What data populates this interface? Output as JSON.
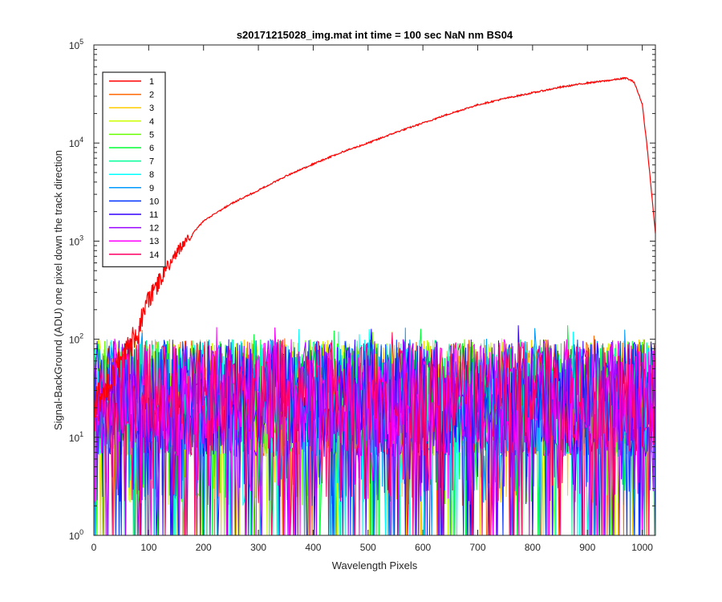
{
  "chart_data": {
    "type": "line",
    "title": "s20171215028_img.mat int time = 100 sec  NaN nm BS04",
    "xlabel": "Wavelength Pixels",
    "ylabel": "Signal-BackGround (ADU) one pixel down the track direction",
    "x_range": [
      0,
      1024
    ],
    "y_range": [
      1,
      100000
    ],
    "y_scale": "log",
    "grid": false,
    "legend_position": "top-left",
    "x_ticks": [
      0,
      100,
      200,
      300,
      400,
      500,
      600,
      700,
      800,
      900,
      1000
    ],
    "x_tick_labels": [
      "0",
      "100",
      "200",
      "300",
      "400",
      "500",
      "600",
      "700",
      "800",
      "900",
      "1000"
    ],
    "y_ticks": [
      {
        "value": 1,
        "base": "10",
        "exp": "0"
      },
      {
        "value": 10,
        "base": "10",
        "exp": "1"
      },
      {
        "value": 100,
        "base": "10",
        "exp": "2"
      },
      {
        "value": 1000,
        "base": "10",
        "exp": "3"
      },
      {
        "value": 10000,
        "base": "10",
        "exp": "4"
      },
      {
        "value": 100000,
        "base": "10",
        "exp": "5"
      }
    ],
    "signal_series": {
      "name": "1",
      "color": "#ff0000",
      "x": [
        0,
        50,
        80,
        100,
        130,
        160,
        200,
        250,
        300,
        350,
        400,
        450,
        500,
        550,
        600,
        650,
        700,
        750,
        800,
        850,
        900,
        940,
        970,
        985,
        1000,
        1010,
        1024
      ],
      "y": [
        20,
        60,
        120,
        250,
        500,
        900,
        1600,
        2400,
        3300,
        4600,
        6100,
        8000,
        10000,
        12800,
        16000,
        20000,
        24500,
        28500,
        32500,
        37000,
        41000,
        43500,
        46000,
        42000,
        25000,
        8000,
        1200
      ]
    },
    "noise_series": [
      {
        "name": "2",
        "color": "#ff6600",
        "typical_range": [
          2,
          100
        ]
      },
      {
        "name": "3",
        "color": "#ffcc00",
        "typical_range": [
          2,
          100
        ]
      },
      {
        "name": "4",
        "color": "#ccff00",
        "typical_range": [
          2,
          100
        ]
      },
      {
        "name": "5",
        "color": "#66ff00",
        "typical_range": [
          2,
          100
        ]
      },
      {
        "name": "6",
        "color": "#00ff33",
        "typical_range": [
          2,
          100
        ]
      },
      {
        "name": "7",
        "color": "#00ff99",
        "typical_range": [
          2,
          100
        ]
      },
      {
        "name": "8",
        "color": "#00ffff",
        "typical_range": [
          2,
          100
        ]
      },
      {
        "name": "9",
        "color": "#0099ff",
        "typical_range": [
          2,
          100
        ]
      },
      {
        "name": "10",
        "color": "#0033ff",
        "typical_range": [
          2,
          100
        ]
      },
      {
        "name": "11",
        "color": "#3300ff",
        "typical_range": [
          2,
          100
        ]
      },
      {
        "name": "12",
        "color": "#9900ff",
        "typical_range": [
          2,
          100
        ]
      },
      {
        "name": "13",
        "color": "#ff00ff",
        "typical_range": [
          2,
          100
        ]
      },
      {
        "name": "14",
        "color": "#ff0066",
        "typical_range": [
          2,
          100
        ]
      }
    ]
  }
}
